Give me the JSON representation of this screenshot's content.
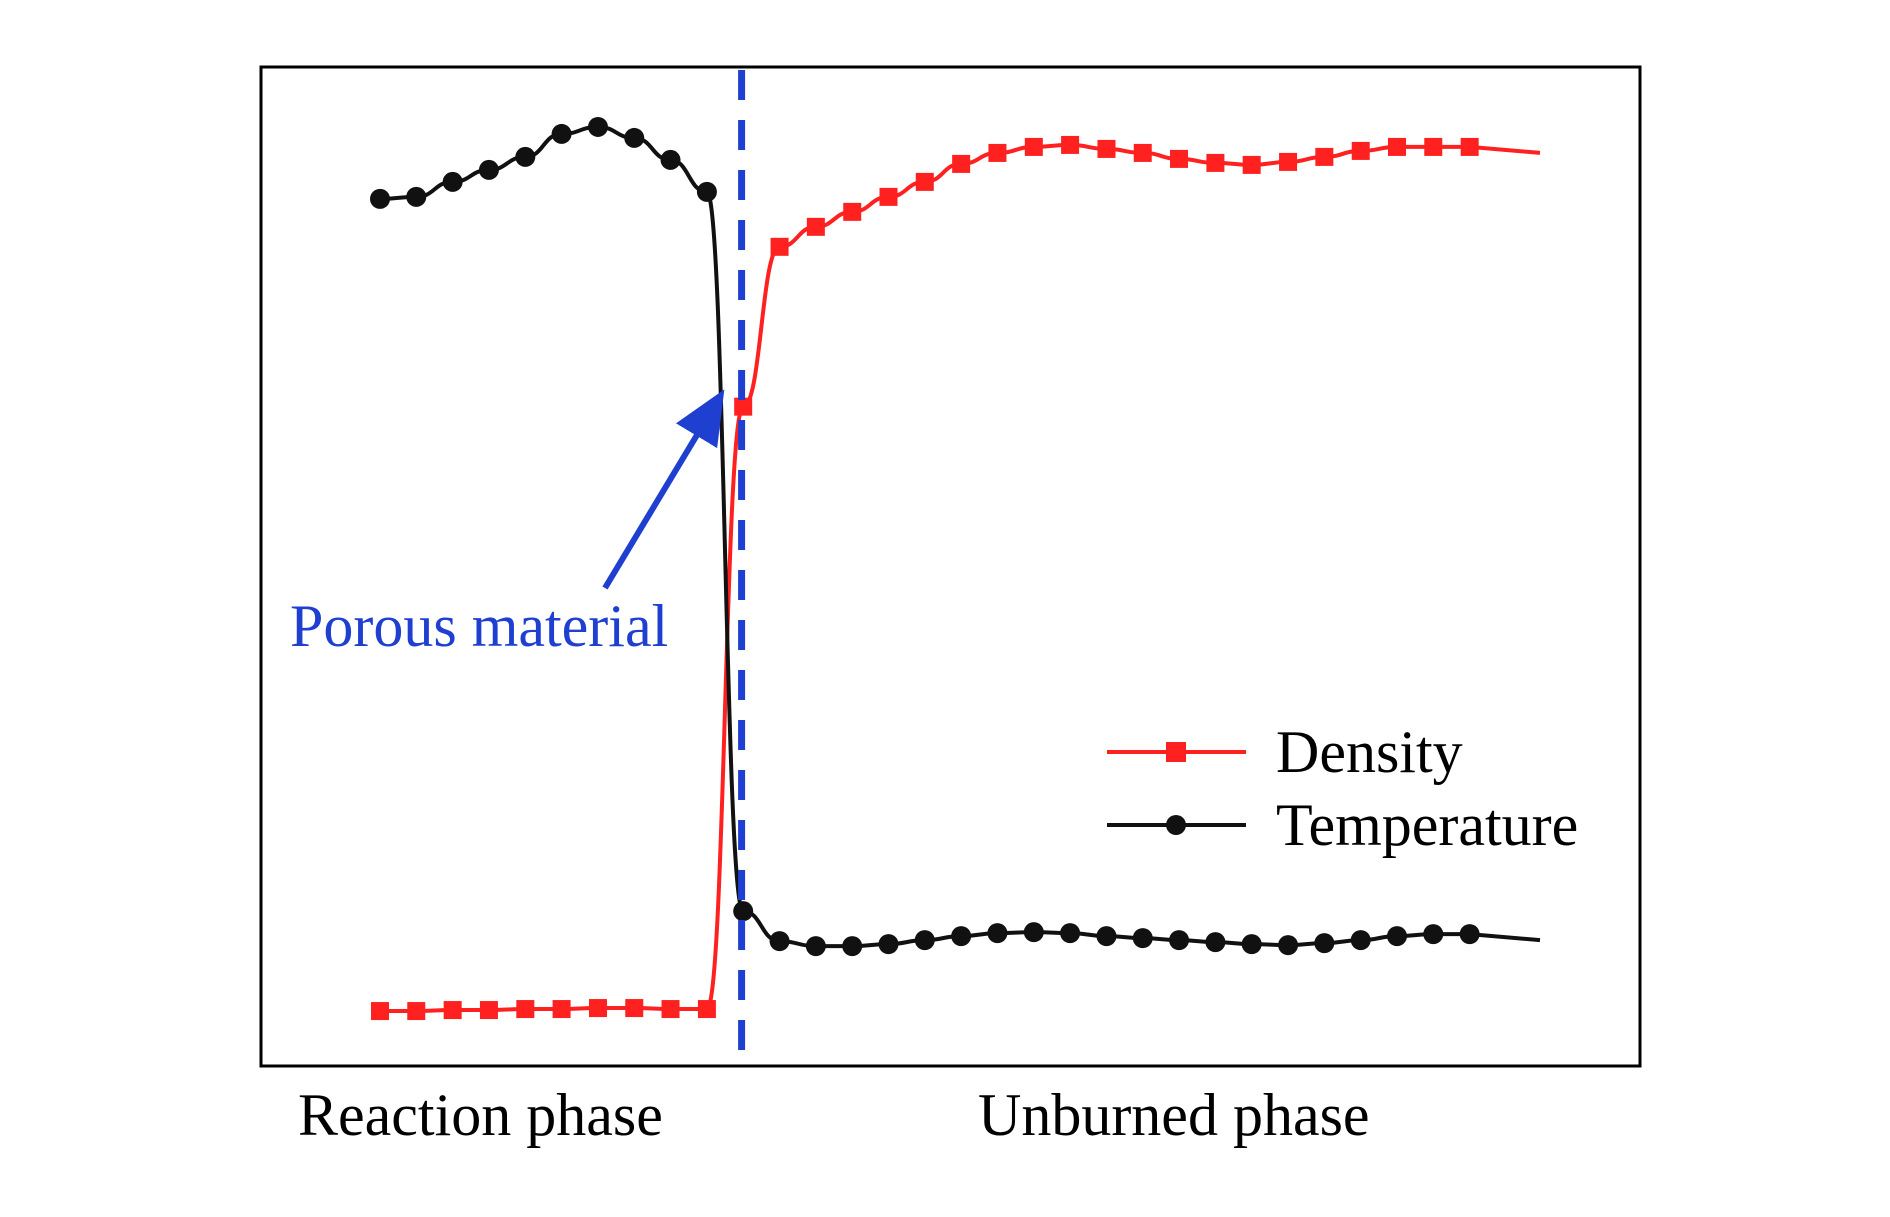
{
  "chart_data": {
    "type": "line",
    "title": "",
    "xlabel": "",
    "ylabel": "",
    "xlim": [
      0,
      100
    ],
    "ylim": [
      0,
      100
    ],
    "grid": false,
    "legend_position": "bottom-right",
    "region_labels": [
      "Reaction phase",
      "Unburned phase"
    ],
    "boundary": {
      "x": 32,
      "label": "Porous material",
      "color": "#1f3fd0"
    },
    "series": [
      {
        "name": "Density",
        "color": "#ff2020",
        "marker": "square",
        "x": [
          0,
          3.21,
          6.43,
          9.64,
          12.86,
          16.07,
          19.29,
          22.5,
          25.71,
          28.93,
          32.14,
          35.36,
          38.57,
          41.79,
          45,
          48.21,
          51.43,
          54.64,
          57.86,
          61.07,
          64.29,
          67.5,
          70.71,
          73.93,
          77.14,
          80.36,
          83.57,
          86.79,
          90,
          93.21,
          96.43
        ],
        "y": [
          5.5,
          5.5,
          5.6,
          5.6,
          5.7,
          5.7,
          5.8,
          5.8,
          5.7,
          5.7,
          66,
          82,
          84,
          85.5,
          87,
          88.5,
          90.3,
          91.4,
          92,
          92.2,
          91.8,
          91.4,
          90.8,
          90.4,
          90.2,
          90.5,
          91,
          91.6,
          92,
          92,
          92
        ]
      },
      {
        "name": "Temperature",
        "color": "#111111",
        "marker": "circle",
        "x": [
          0,
          3.21,
          6.43,
          9.64,
          12.86,
          16.07,
          19.29,
          22.5,
          25.71,
          28.93,
          32.14,
          35.36,
          38.57,
          41.79,
          45,
          48.21,
          51.43,
          54.64,
          57.86,
          61.07,
          64.29,
          67.5,
          70.71,
          73.93,
          77.14,
          80.36,
          83.57,
          86.79,
          90,
          93.21,
          96.43
        ],
        "y": [
          86.8,
          87,
          88.5,
          89.7,
          91,
          93.3,
          94,
          92.9,
          90.7,
          87.5,
          15.5,
          12.5,
          12,
          12,
          12.2,
          12.6,
          13,
          13.3,
          13.4,
          13.3,
          13,
          12.8,
          12.6,
          12.4,
          12.2,
          12.1,
          12.3,
          12.6,
          13,
          13.2,
          13.2
        ]
      }
    ]
  }
}
